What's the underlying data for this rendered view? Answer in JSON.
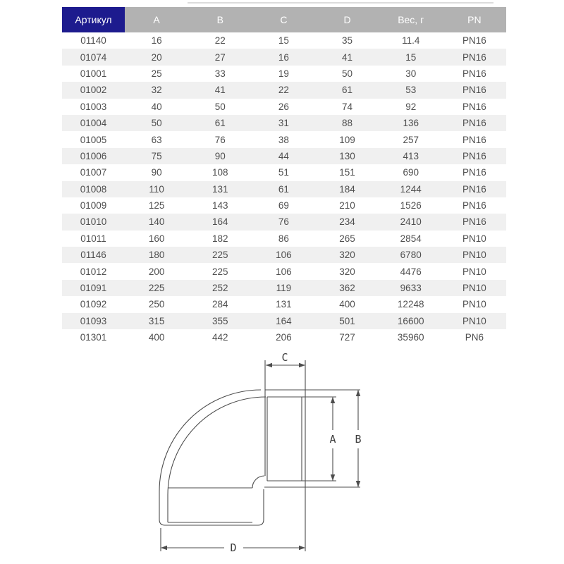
{
  "colors": {
    "article_header_bg": "#1d1b8e",
    "header_bg": "#b2b2b2",
    "header_text": "#ffffff",
    "row_stripe": "#f0f0f0",
    "row_plain": "#ffffff",
    "cell_text": "#4f4f4f",
    "drawing_line": "#4d4d4d"
  },
  "table": {
    "columns": [
      "Артикул",
      "A",
      "B",
      "C",
      "D",
      "Вес, г",
      "PN"
    ],
    "rows": [
      [
        "01140",
        "16",
        "22",
        "15",
        "35",
        "11.4",
        "PN16"
      ],
      [
        "01074",
        "20",
        "27",
        "16",
        "41",
        "15",
        "PN16"
      ],
      [
        "01001",
        "25",
        "33",
        "19",
        "50",
        "30",
        "PN16"
      ],
      [
        "01002",
        "32",
        "41",
        "22",
        "61",
        "53",
        "PN16"
      ],
      [
        "01003",
        "40",
        "50",
        "26",
        "74",
        "92",
        "PN16"
      ],
      [
        "01004",
        "50",
        "61",
        "31",
        "88",
        "136",
        "PN16"
      ],
      [
        "01005",
        "63",
        "76",
        "38",
        "109",
        "257",
        "PN16"
      ],
      [
        "01006",
        "75",
        "90",
        "44",
        "130",
        "413",
        "PN16"
      ],
      [
        "01007",
        "90",
        "108",
        "51",
        "151",
        "690",
        "PN16"
      ],
      [
        "01008",
        "110",
        "131",
        "61",
        "184",
        "1244",
        "PN16"
      ],
      [
        "01009",
        "125",
        "143",
        "69",
        "210",
        "1526",
        "PN16"
      ],
      [
        "01010",
        "140",
        "164",
        "76",
        "234",
        "2410",
        "PN16"
      ],
      [
        "01011",
        "160",
        "182",
        "86",
        "265",
        "2854",
        "PN10"
      ],
      [
        "01146",
        "180",
        "225",
        "106",
        "320",
        "6780",
        "PN10"
      ],
      [
        "01012",
        "200",
        "225",
        "106",
        "320",
        "4476",
        "PN10"
      ],
      [
        "01091",
        "225",
        "252",
        "119",
        "362",
        "9633",
        "PN10"
      ],
      [
        "01092",
        "250",
        "284",
        "131",
        "400",
        "12248",
        "PN10"
      ],
      [
        "01093",
        "315",
        "355",
        "164",
        "501",
        "16600",
        "PN10"
      ],
      [
        "01301",
        "400",
        "442",
        "206",
        "727",
        "35960",
        "PN6"
      ]
    ]
  },
  "drawing": {
    "labels": {
      "a": "A",
      "b": "B",
      "c": "C",
      "d": "D"
    }
  }
}
